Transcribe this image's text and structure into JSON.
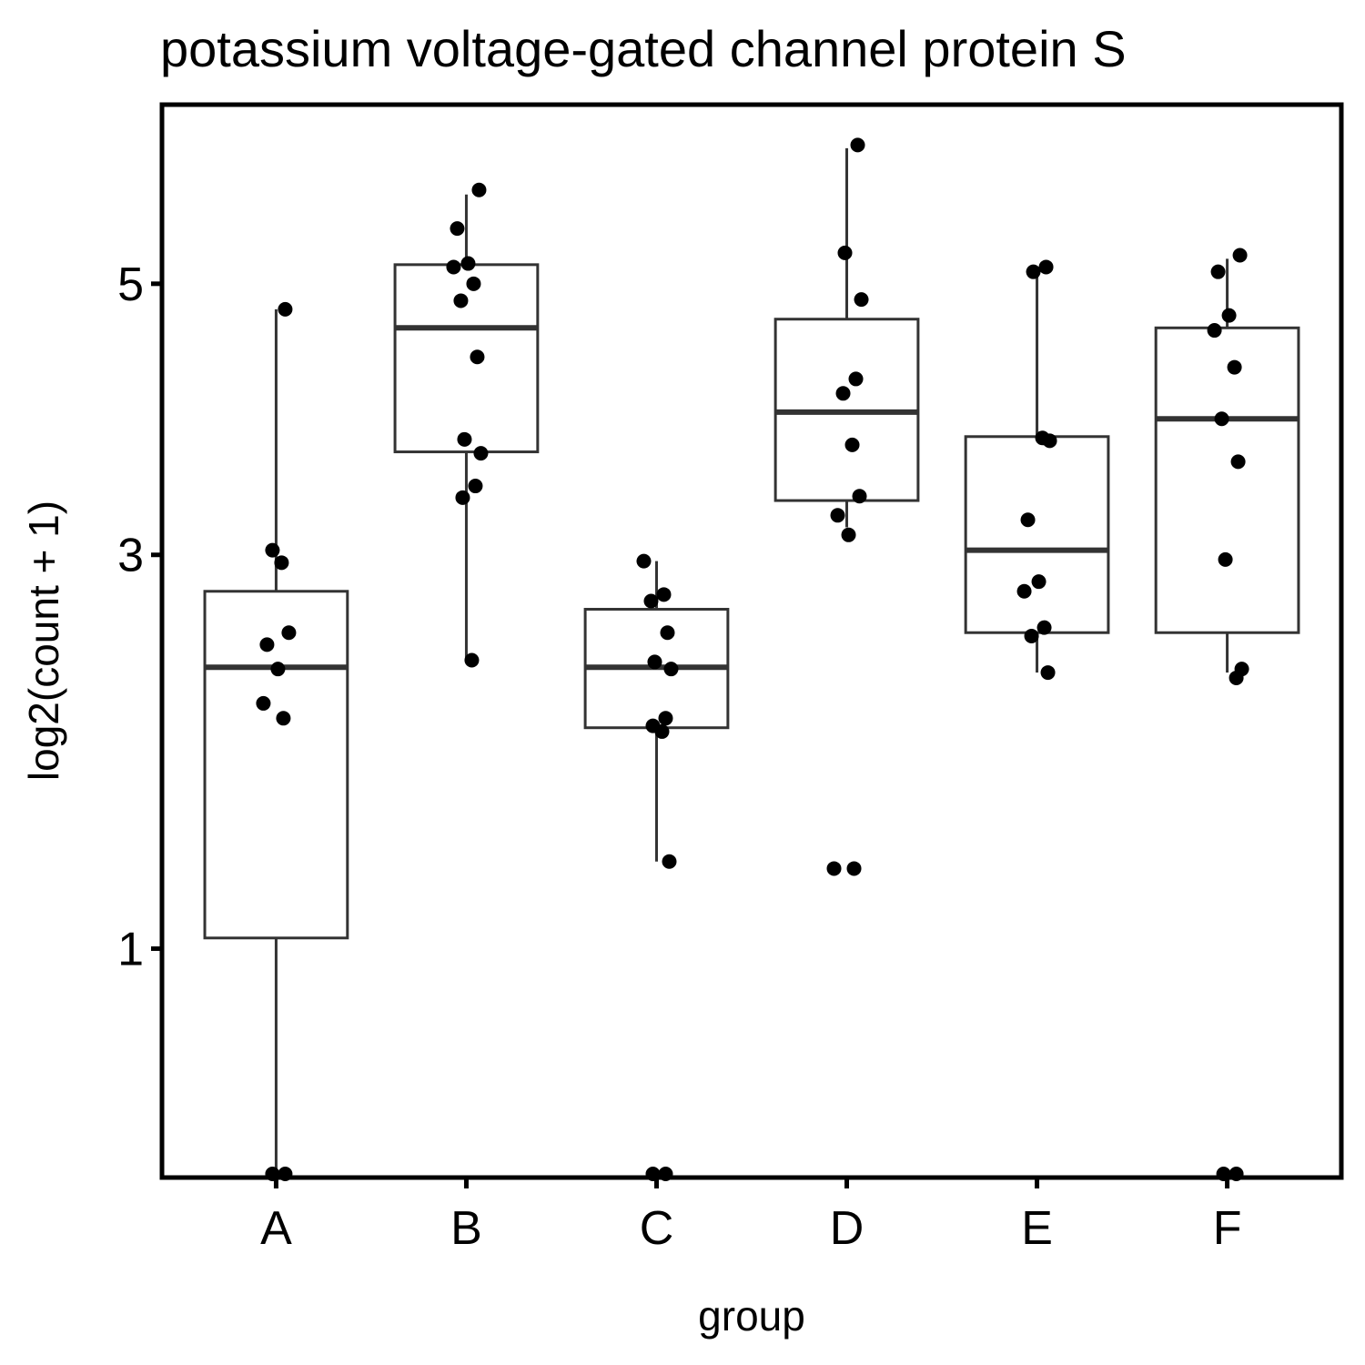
{
  "chart_data": {
    "type": "box",
    "title": "potassium voltage-gated channel protein S",
    "xlabel": "group",
    "ylabel": "log2(count + 1)",
    "y_scale": "sqrt",
    "ylim": [
      0.33,
      6.6
    ],
    "y_ticks": [
      1,
      3,
      5
    ],
    "grid": false,
    "categories": [
      "A",
      "B",
      "C",
      "D",
      "E",
      "F"
    ],
    "boxes": [
      {
        "group": "A",
        "whisker_low": 0,
        "q1": 1.04,
        "median": 2.32,
        "q3": 2.77,
        "whisker_high": 4.79
      },
      {
        "group": "B",
        "whisker_low": 2.36,
        "q1": 3.7,
        "median": 4.64,
        "q3": 5.16,
        "whisker_high": 5.77
      },
      {
        "group": "C",
        "whisker_low": 1.35,
        "q1": 1.99,
        "median": 2.32,
        "q3": 2.66,
        "whisker_high": 2.96
      },
      {
        "group": "D",
        "whisker_low": 3.18,
        "q1": 3.36,
        "median": 3.99,
        "q3": 4.71,
        "whisker_high": 6.19
      },
      {
        "group": "E",
        "whisker_low": 2.29,
        "q1": 2.52,
        "median": 3.03,
        "q3": 3.81,
        "whisker_high": 5.14
      },
      {
        "group": "F",
        "whisker_low": 2.29,
        "q1": 2.52,
        "median": 3.94,
        "q3": 4.64,
        "whisker_high": 5.21
      }
    ],
    "points": [
      {
        "group": "A",
        "y": [
          4.79,
          3.03,
          2.95,
          2.52,
          2.45,
          2.31,
          2.12,
          2.04,
          0,
          0
        ]
      },
      {
        "group": "B",
        "y": [
          5.81,
          5.47,
          5.17,
          5.14,
          5.0,
          4.86,
          4.41,
          3.79,
          3.69,
          3.46,
          3.38,
          2.36
        ]
      },
      {
        "group": "C",
        "y": [
          2.96,
          2.75,
          2.71,
          2.52,
          2.35,
          2.31,
          2.04,
          2.0,
          1.97,
          1.35,
          0,
          0
        ]
      },
      {
        "group": "D",
        "y": [
          6.22,
          5.26,
          4.87,
          4.24,
          4.13,
          3.75,
          3.39,
          3.26,
          3.13,
          1.32,
          1.32
        ]
      },
      {
        "group": "E",
        "y": [
          5.14,
          5.1,
          3.8,
          3.78,
          3.23,
          2.83,
          2.77,
          2.55,
          2.5,
          2.29
        ]
      },
      {
        "group": "F",
        "y": [
          5.24,
          5.1,
          4.74,
          4.62,
          4.33,
          3.94,
          3.63,
          2.97,
          2.31,
          2.26,
          0,
          0
        ]
      }
    ]
  }
}
